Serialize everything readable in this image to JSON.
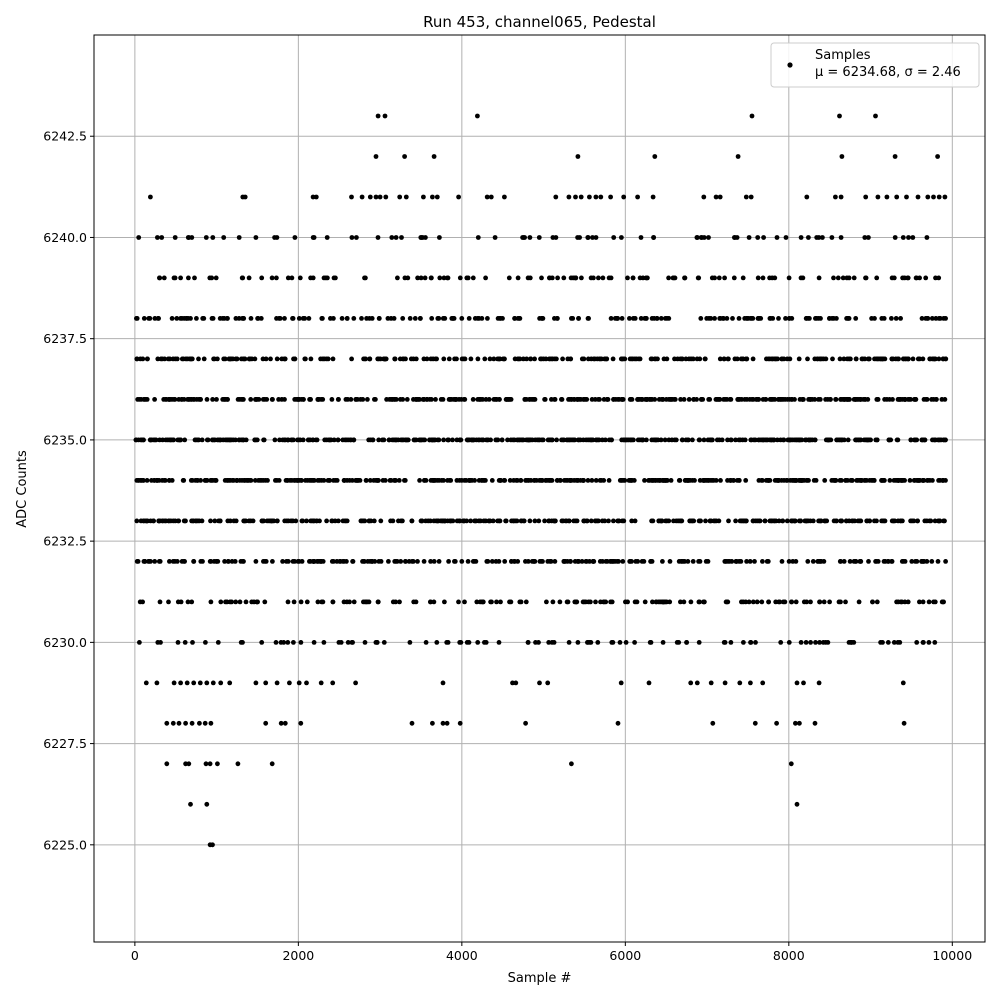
{
  "chart_data": {
    "type": "scatter",
    "title": "Run 453, channel065, Pedestal",
    "xlabel": "Sample #",
    "ylabel": "ADC Counts",
    "xlim": [
      -500,
      10400
    ],
    "ylim": [
      6222.6,
      6245.0
    ],
    "xticks": [
      0,
      2000,
      4000,
      6000,
      8000,
      10000
    ],
    "xtick_labels": [
      "0",
      "2000",
      "4000",
      "6000",
      "8000",
      "10000"
    ],
    "yticks": [
      6225.0,
      6227.5,
      6230.0,
      6232.5,
      6235.0,
      6237.5,
      6240.0,
      6242.5
    ],
    "ytick_labels": [
      "6225.0",
      "6227.5",
      "6230.0",
      "6232.5",
      "6235.0",
      "6237.5",
      "6240.0",
      "6242.5"
    ],
    "grid": true,
    "legend": {
      "position": "top-right",
      "entries": [
        {
          "label": "Samples",
          "sublabel": "μ = 6234.68, σ = 2.46",
          "marker": "dot",
          "color": "#000000"
        }
      ]
    },
    "series": [
      {
        "name": "Samples",
        "color": "#000000",
        "n_samples": 9934,
        "mean": 6234.68,
        "std": 2.46,
        "dense_levels": [
          6230,
          6231,
          6232,
          6233,
          6234,
          6235,
          6236,
          6237,
          6238,
          6239,
          6240
        ],
        "sparse_points": [
          {
            "x": 2975,
            "y": 6243
          },
          {
            "x": 3060,
            "y": 6243
          },
          {
            "x": 4190,
            "y": 6243
          },
          {
            "x": 7550,
            "y": 6243
          },
          {
            "x": 8620,
            "y": 6243
          },
          {
            "x": 9060,
            "y": 6243
          },
          {
            "x": 2950,
            "y": 6242
          },
          {
            "x": 3300,
            "y": 6242
          },
          {
            "x": 3660,
            "y": 6242
          },
          {
            "x": 5420,
            "y": 6242
          },
          {
            "x": 6360,
            "y": 6242
          },
          {
            "x": 7380,
            "y": 6242
          },
          {
            "x": 8650,
            "y": 6242
          },
          {
            "x": 9300,
            "y": 6242
          },
          {
            "x": 9820,
            "y": 6242
          },
          {
            "x": 190,
            "y": 6241
          },
          {
            "x": 1320,
            "y": 6241
          },
          {
            "x": 1350,
            "y": 6241
          },
          {
            "x": 2180,
            "y": 6241
          },
          {
            "x": 2220,
            "y": 6241
          },
          {
            "x": 2650,
            "y": 6241
          },
          {
            "x": 2780,
            "y": 6241
          },
          {
            "x": 2880,
            "y": 6241
          },
          {
            "x": 2950,
            "y": 6241
          },
          {
            "x": 3000,
            "y": 6241
          },
          {
            "x": 3070,
            "y": 6241
          },
          {
            "x": 3240,
            "y": 6241
          },
          {
            "x": 3320,
            "y": 6241
          },
          {
            "x": 3530,
            "y": 6241
          },
          {
            "x": 3640,
            "y": 6241
          },
          {
            "x": 3700,
            "y": 6241
          },
          {
            "x": 3960,
            "y": 6241
          },
          {
            "x": 4310,
            "y": 6241
          },
          {
            "x": 4360,
            "y": 6241
          },
          {
            "x": 4520,
            "y": 6241
          },
          {
            "x": 5150,
            "y": 6241
          },
          {
            "x": 5310,
            "y": 6241
          },
          {
            "x": 5390,
            "y": 6241
          },
          {
            "x": 5460,
            "y": 6241
          },
          {
            "x": 5560,
            "y": 6241
          },
          {
            "x": 5640,
            "y": 6241
          },
          {
            "x": 5700,
            "y": 6241
          },
          {
            "x": 5820,
            "y": 6241
          },
          {
            "x": 5980,
            "y": 6241
          },
          {
            "x": 6150,
            "y": 6241
          },
          {
            "x": 6340,
            "y": 6241
          },
          {
            "x": 6960,
            "y": 6241
          },
          {
            "x": 7110,
            "y": 6241
          },
          {
            "x": 7160,
            "y": 6241
          },
          {
            "x": 7480,
            "y": 6241
          },
          {
            "x": 7540,
            "y": 6241
          },
          {
            "x": 8220,
            "y": 6241
          },
          {
            "x": 8570,
            "y": 6241
          },
          {
            "x": 8640,
            "y": 6241
          },
          {
            "x": 8940,
            "y": 6241
          },
          {
            "x": 9090,
            "y": 6241
          },
          {
            "x": 9200,
            "y": 6241
          },
          {
            "x": 9320,
            "y": 6241
          },
          {
            "x": 9440,
            "y": 6241
          },
          {
            "x": 9580,
            "y": 6241
          },
          {
            "x": 9700,
            "y": 6241
          },
          {
            "x": 9770,
            "y": 6241
          },
          {
            "x": 9840,
            "y": 6241
          },
          {
            "x": 9910,
            "y": 6241
          },
          {
            "x": 140,
            "y": 6229
          },
          {
            "x": 270,
            "y": 6229
          },
          {
            "x": 480,
            "y": 6229
          },
          {
            "x": 560,
            "y": 6229
          },
          {
            "x": 640,
            "y": 6229
          },
          {
            "x": 720,
            "y": 6229
          },
          {
            "x": 800,
            "y": 6229
          },
          {
            "x": 880,
            "y": 6229
          },
          {
            "x": 960,
            "y": 6229
          },
          {
            "x": 1050,
            "y": 6229
          },
          {
            "x": 1160,
            "y": 6229
          },
          {
            "x": 1480,
            "y": 6229
          },
          {
            "x": 1600,
            "y": 6229
          },
          {
            "x": 1740,
            "y": 6229
          },
          {
            "x": 1890,
            "y": 6229
          },
          {
            "x": 2010,
            "y": 6229
          },
          {
            "x": 2100,
            "y": 6229
          },
          {
            "x": 2280,
            "y": 6229
          },
          {
            "x": 2420,
            "y": 6229
          },
          {
            "x": 2700,
            "y": 6229
          },
          {
            "x": 3770,
            "y": 6229
          },
          {
            "x": 4620,
            "y": 6229
          },
          {
            "x": 4660,
            "y": 6229
          },
          {
            "x": 4950,
            "y": 6229
          },
          {
            "x": 5050,
            "y": 6229
          },
          {
            "x": 5950,
            "y": 6229
          },
          {
            "x": 6290,
            "y": 6229
          },
          {
            "x": 6800,
            "y": 6229
          },
          {
            "x": 6880,
            "y": 6229
          },
          {
            "x": 7050,
            "y": 6229
          },
          {
            "x": 7220,
            "y": 6229
          },
          {
            "x": 7400,
            "y": 6229
          },
          {
            "x": 7530,
            "y": 6229
          },
          {
            "x": 7680,
            "y": 6229
          },
          {
            "x": 8100,
            "y": 6229
          },
          {
            "x": 8180,
            "y": 6229
          },
          {
            "x": 8370,
            "y": 6229
          },
          {
            "x": 9400,
            "y": 6229
          },
          {
            "x": 390,
            "y": 6228
          },
          {
            "x": 470,
            "y": 6228
          },
          {
            "x": 540,
            "y": 6228
          },
          {
            "x": 620,
            "y": 6228
          },
          {
            "x": 700,
            "y": 6228
          },
          {
            "x": 790,
            "y": 6228
          },
          {
            "x": 860,
            "y": 6228
          },
          {
            "x": 930,
            "y": 6228
          },
          {
            "x": 1600,
            "y": 6228
          },
          {
            "x": 1790,
            "y": 6228
          },
          {
            "x": 1840,
            "y": 6228
          },
          {
            "x": 2030,
            "y": 6228
          },
          {
            "x": 3390,
            "y": 6228
          },
          {
            "x": 3640,
            "y": 6228
          },
          {
            "x": 3770,
            "y": 6228
          },
          {
            "x": 3820,
            "y": 6228
          },
          {
            "x": 3980,
            "y": 6228
          },
          {
            "x": 4780,
            "y": 6228
          },
          {
            "x": 5910,
            "y": 6228
          },
          {
            "x": 7070,
            "y": 6228
          },
          {
            "x": 7590,
            "y": 6228
          },
          {
            "x": 7850,
            "y": 6228
          },
          {
            "x": 8080,
            "y": 6228
          },
          {
            "x": 8130,
            "y": 6228
          },
          {
            "x": 8320,
            "y": 6228
          },
          {
            "x": 9410,
            "y": 6228
          },
          {
            "x": 390,
            "y": 6227
          },
          {
            "x": 620,
            "y": 6227
          },
          {
            "x": 660,
            "y": 6227
          },
          {
            "x": 870,
            "y": 6227
          },
          {
            "x": 920,
            "y": 6227
          },
          {
            "x": 1010,
            "y": 6227
          },
          {
            "x": 1260,
            "y": 6227
          },
          {
            "x": 1680,
            "y": 6227
          },
          {
            "x": 5340,
            "y": 6227
          },
          {
            "x": 8030,
            "y": 6227
          },
          {
            "x": 680,
            "y": 6226
          },
          {
            "x": 880,
            "y": 6226
          },
          {
            "x": 8100,
            "y": 6226
          },
          {
            "x": 920,
            "y": 6225
          },
          {
            "x": 950,
            "y": 6225
          }
        ]
      }
    ]
  }
}
